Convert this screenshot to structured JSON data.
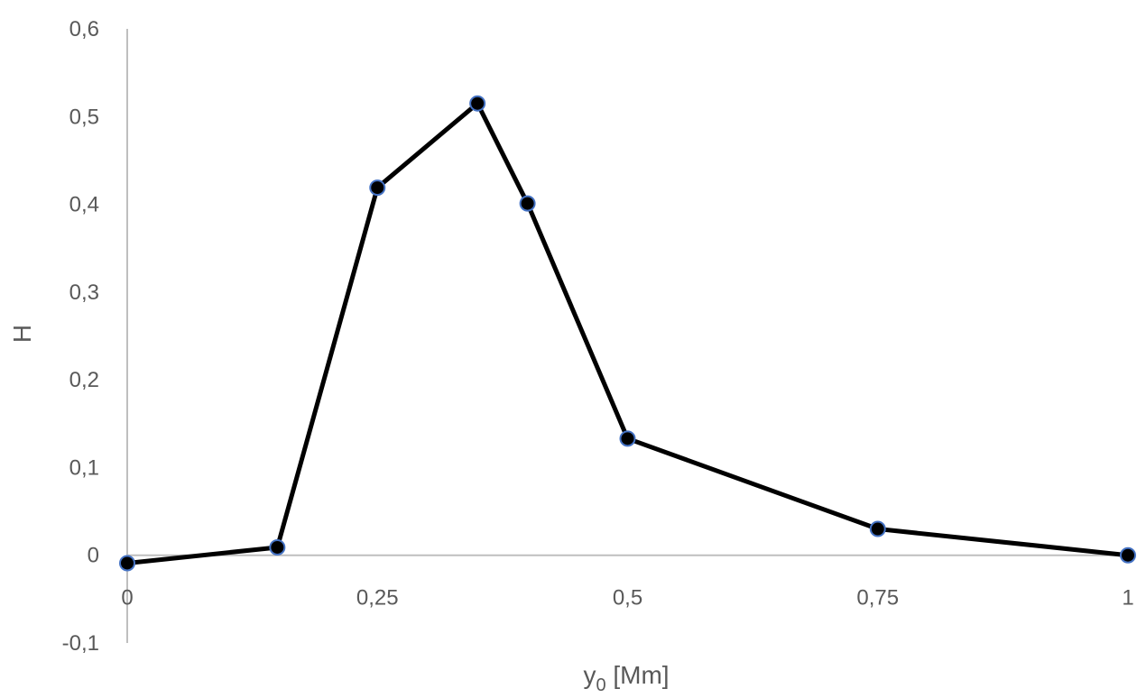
{
  "chart_data": {
    "type": "line",
    "title": "",
    "xlabel": "y",
    "xlabel_sub": "0",
    "xlabel_unit": " [Mm]",
    "ylabel": "H",
    "xlim": [
      0,
      1
    ],
    "ylim": [
      -0.1,
      0.6
    ],
    "x_ticks": [
      {
        "value": 0,
        "label": "0"
      },
      {
        "value": 0.25,
        "label": "0,25"
      },
      {
        "value": 0.5,
        "label": "0,5"
      },
      {
        "value": 0.75,
        "label": "0,75"
      },
      {
        "value": 1,
        "label": "1"
      }
    ],
    "y_ticks": [
      {
        "value": -0.1,
        "label": "-0,1"
      },
      {
        "value": 0,
        "label": "0"
      },
      {
        "value": 0.1,
        "label": "0,1"
      },
      {
        "value": 0.2,
        "label": "0,2"
      },
      {
        "value": 0.3,
        "label": "0,3"
      },
      {
        "value": 0.4,
        "label": "0,4"
      },
      {
        "value": 0.5,
        "label": "0,5"
      },
      {
        "value": 0.6,
        "label": "0,6"
      }
    ],
    "grid": false,
    "series": [
      {
        "x": [
          0,
          0.15,
          0.25,
          0.35,
          0.4,
          0.5,
          0.75,
          1
        ],
        "y": [
          -0.009,
          0.009,
          0.419,
          0.515,
          0.401,
          0.133,
          0.03,
          0.0
        ]
      }
    ],
    "colors": {
      "line": "#000000",
      "marker_fill": "#000000",
      "marker_edge": "#4472C4",
      "axis": "#BFBFBF",
      "text": "#595959"
    }
  }
}
